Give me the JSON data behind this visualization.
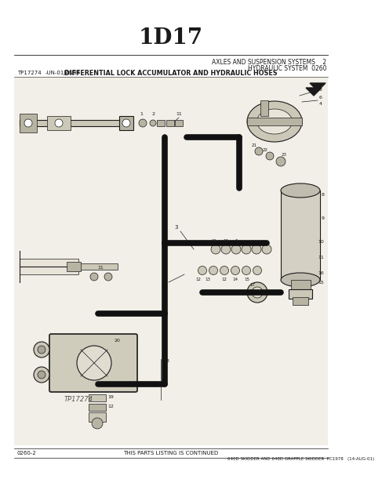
{
  "title": "1D17",
  "subtitle_right1": "AXLES AND SUSPENSION SYSTEMS    2",
  "subtitle_right2": "HYDRAULIC SYSTEM  0260",
  "left_code": "TP17274",
  "left_date": "-UN-01JAN94",
  "diagram_label": "DIFFERENTIAL LOCK ACCUMULATOR AND HYDRAULIC HOSES",
  "watermark": "TP17274",
  "bottom_left": "0260-2",
  "bottom_mid": "THIS PARTS LISTING IS CONTINUED",
  "bottom_right": "640D SKIDDER AND 648D GRAPPLE SKIDDER  PC1978   (14-AUG-01)",
  "bg_color": "#ffffff",
  "page_tint": "#f2efe8",
  "lc": "#1a1a1a",
  "hose_color": "#111111",
  "part_fill": "#ccc8b8",
  "part_fill2": "#b8b4a4"
}
